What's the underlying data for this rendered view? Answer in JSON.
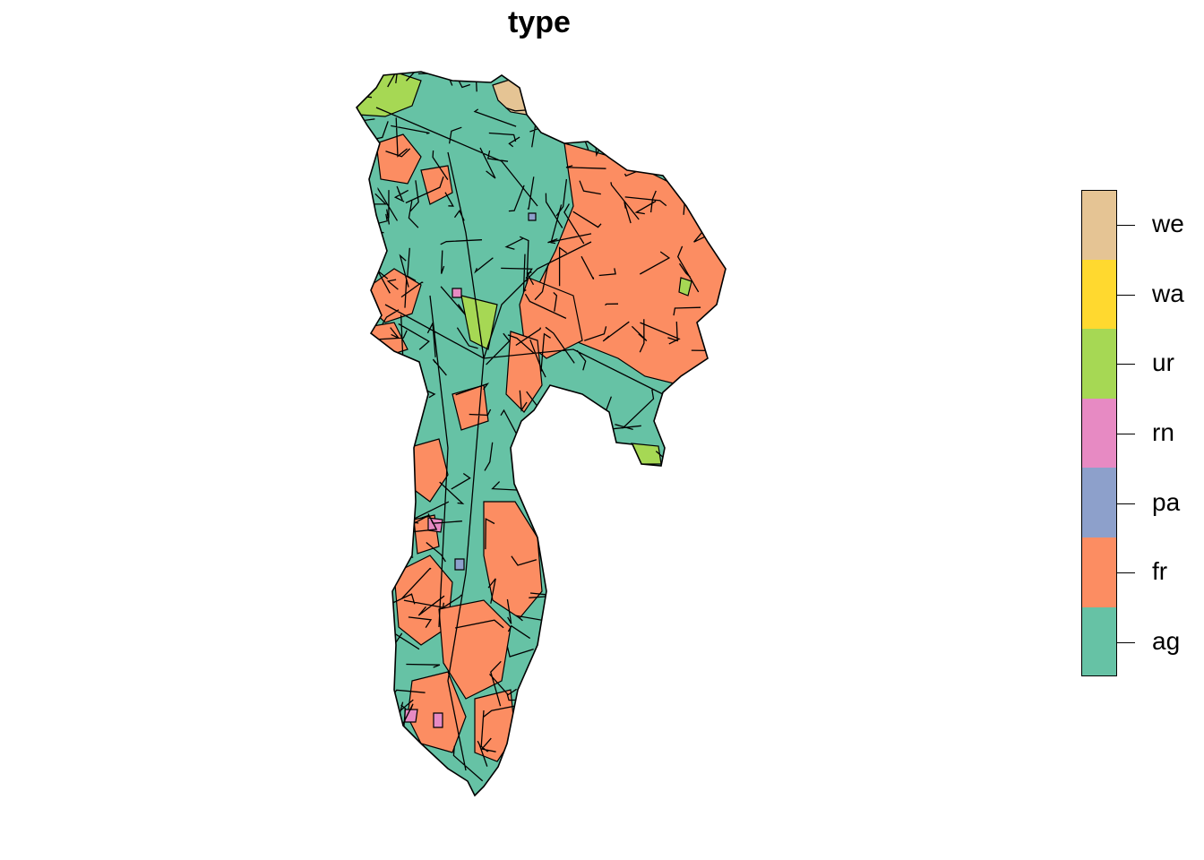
{
  "title": "type",
  "legend": {
    "entries": [
      {
        "code": "we",
        "color": "#E5C494"
      },
      {
        "code": "wa",
        "color": "#FFD92F"
      },
      {
        "code": "ur",
        "color": "#A6D854"
      },
      {
        "code": "rn",
        "color": "#E78AC3"
      },
      {
        "code": "pa",
        "color": "#8DA0CB"
      },
      {
        "code": "fr",
        "color": "#FC8D62"
      },
      {
        "code": "ag",
        "color": "#66C2A5"
      }
    ]
  },
  "colors": {
    "border": "#000000",
    "background": "#FFFFFF"
  }
}
